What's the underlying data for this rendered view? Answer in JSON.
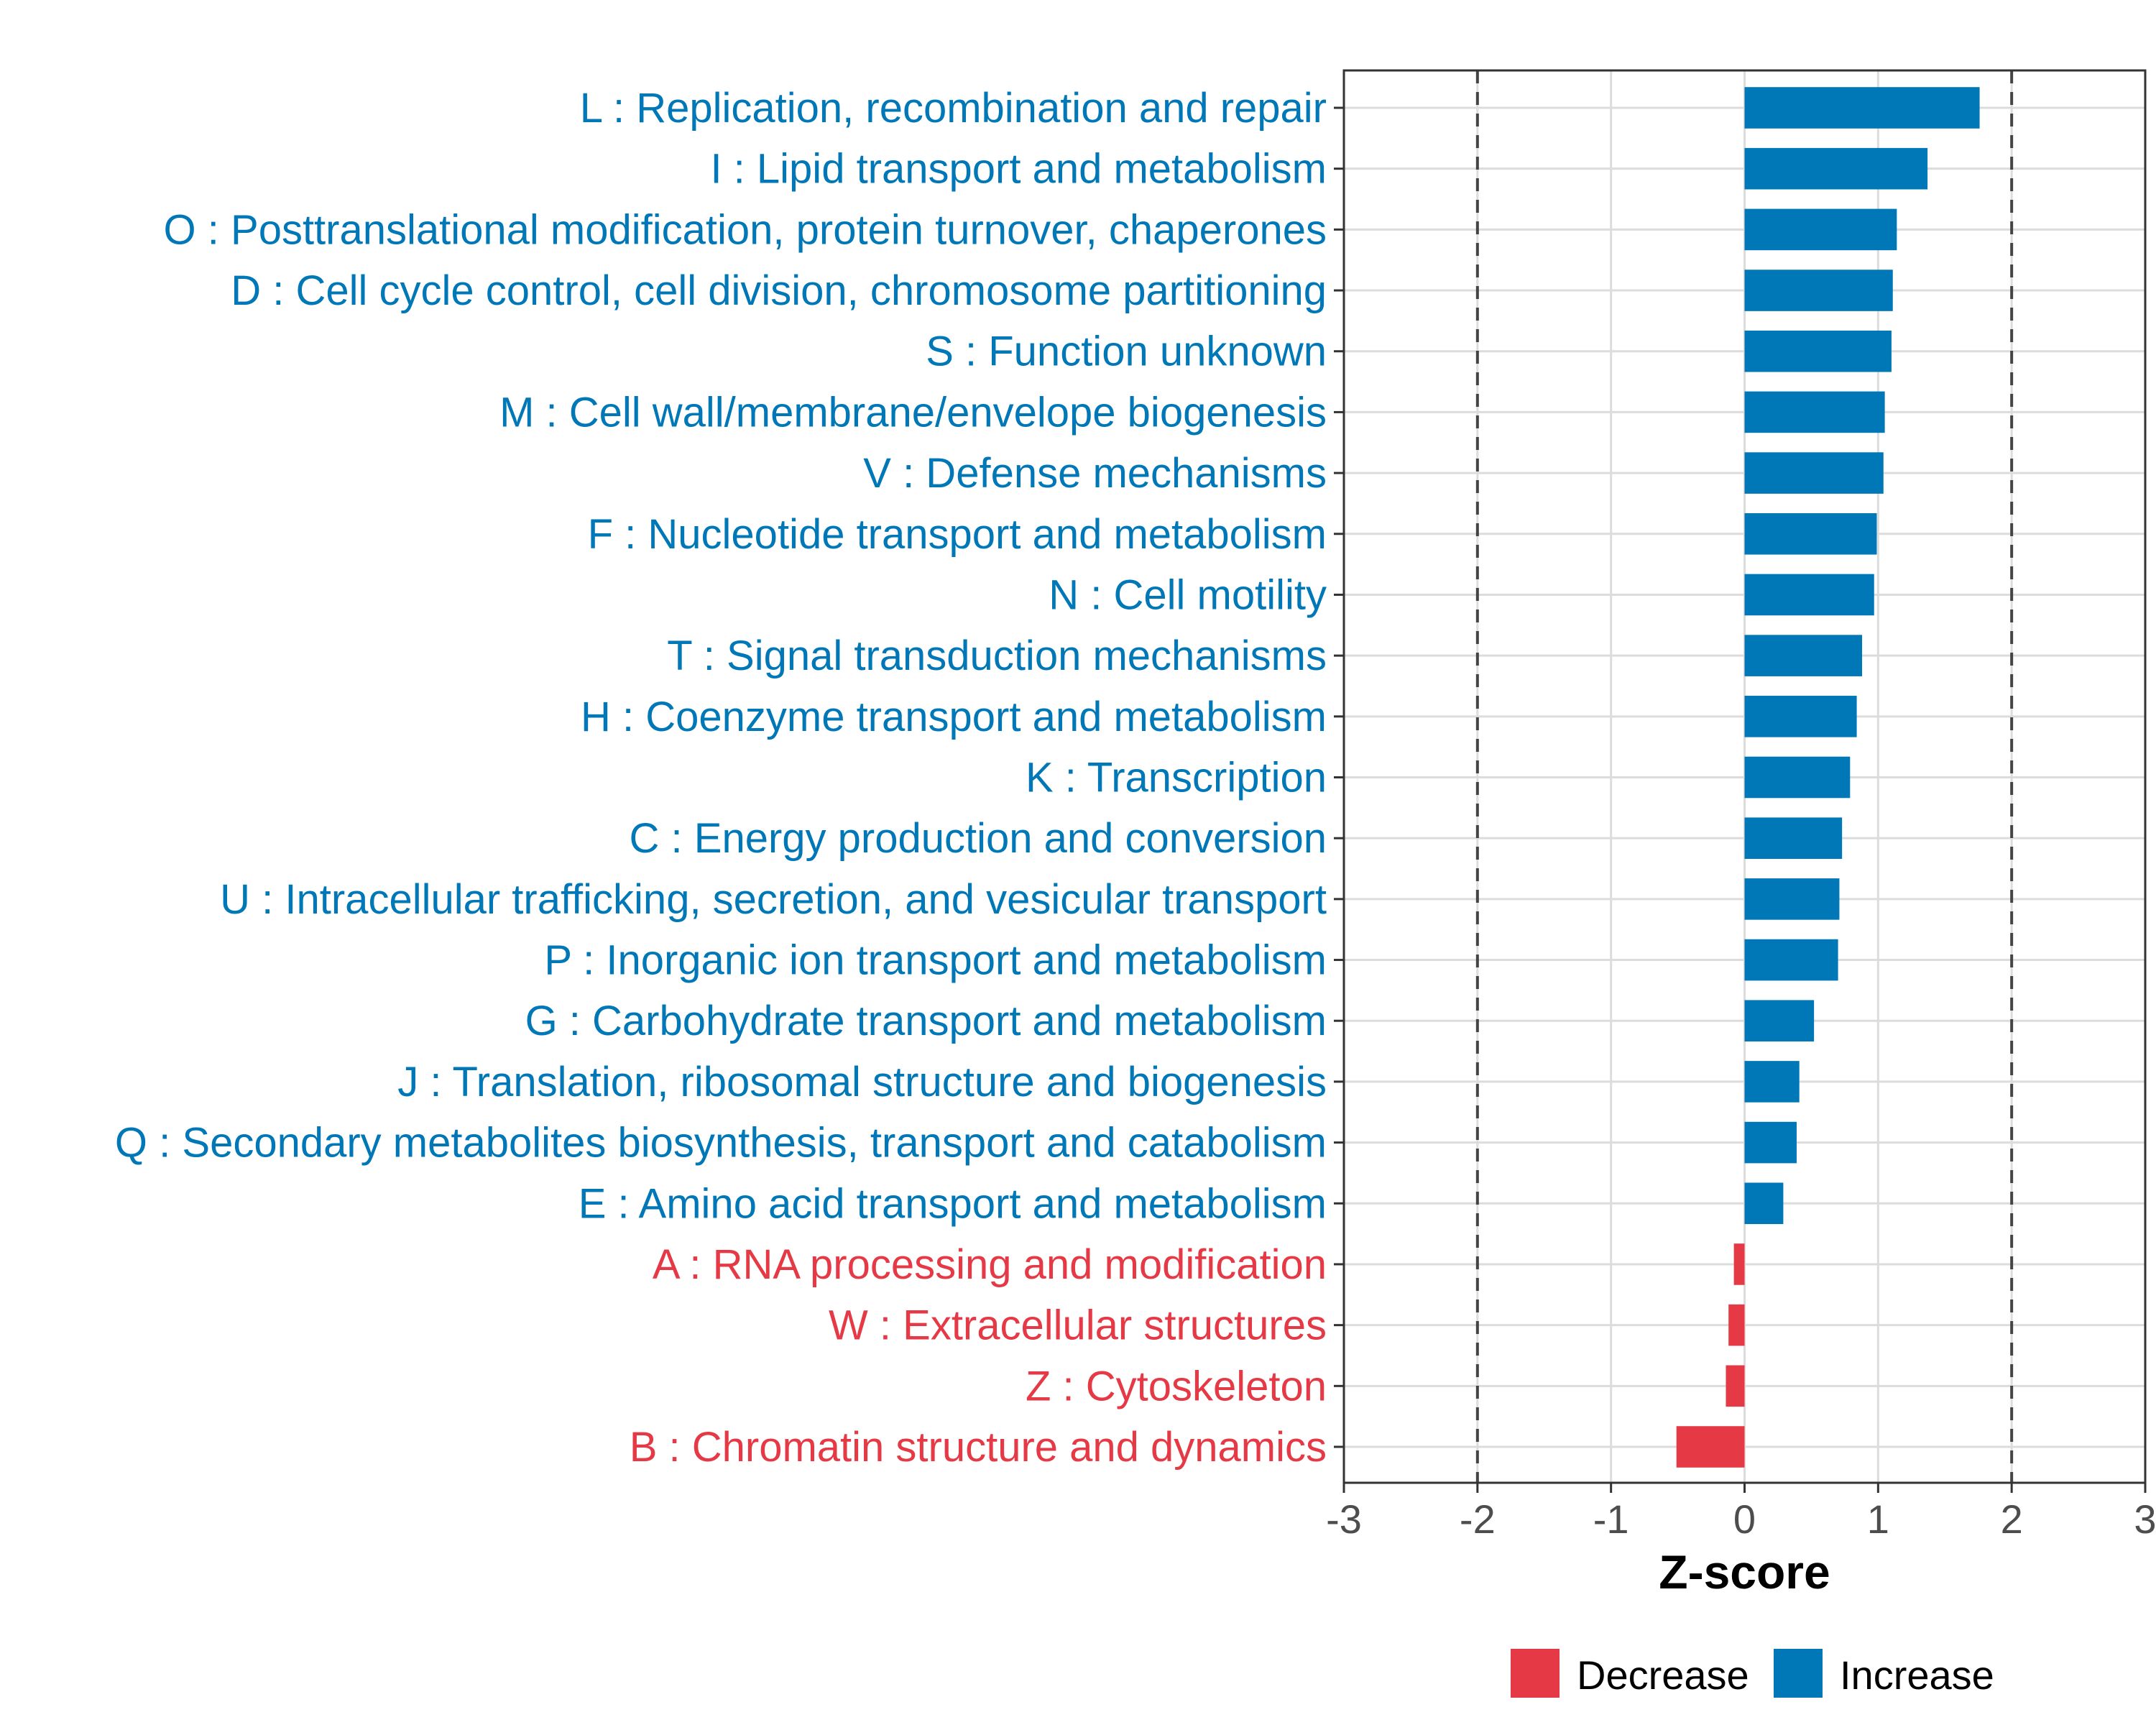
{
  "chart_data": {
    "type": "bar",
    "orientation": "horizontal",
    "xlabel": "Z-score",
    "xlim": [
      -3,
      3
    ],
    "xticks": [
      -3,
      -2,
      -1,
      0,
      1,
      2,
      3
    ],
    "threshold_lines": [
      -2,
      2
    ],
    "grid": true,
    "categories": [
      "L : Replication, recombination and repair",
      "I : Lipid transport and metabolism",
      "O : Posttranslational modification, protein turnover, chaperones",
      "D : Cell cycle control, cell division, chromosome partitioning",
      "S : Function unknown",
      "M : Cell wall/membrane/envelope biogenesis",
      "V : Defense mechanisms",
      "F : Nucleotide transport and metabolism",
      "N : Cell motility",
      "T : Signal transduction mechanisms",
      "H : Coenzyme transport and metabolism",
      "K : Transcription",
      "C : Energy production and conversion",
      "U : Intracellular trafficking, secretion, and vesicular transport",
      "P : Inorganic ion transport and metabolism",
      "G : Carbohydrate transport and metabolism",
      "J : Translation, ribosomal structure and biogenesis",
      "Q : Secondary metabolites biosynthesis, transport and catabolism",
      "E : Amino acid transport and metabolism",
      "A : RNA processing and modification",
      "W : Extracellular structures",
      "Z : Cytoskeleton",
      "B : Chromatin structure and dynamics"
    ],
    "values": [
      1.76,
      1.37,
      1.14,
      1.11,
      1.1,
      1.05,
      1.04,
      0.99,
      0.97,
      0.88,
      0.84,
      0.79,
      0.73,
      0.71,
      0.7,
      0.52,
      0.41,
      0.39,
      0.29,
      -0.08,
      -0.12,
      -0.14,
      -0.51
    ],
    "groups": [
      "Increase",
      "Increase",
      "Increase",
      "Increase",
      "Increase",
      "Increase",
      "Increase",
      "Increase",
      "Increase",
      "Increase",
      "Increase",
      "Increase",
      "Increase",
      "Increase",
      "Increase",
      "Increase",
      "Increase",
      "Increase",
      "Increase",
      "Decrease",
      "Decrease",
      "Decrease",
      "Decrease"
    ],
    "legend": {
      "position": "bottom",
      "entries": [
        {
          "label": "Decrease",
          "color": "#E63946"
        },
        {
          "label": "Increase",
          "color": "#0077B6"
        }
      ]
    },
    "colors": {
      "Decrease": "#E63946",
      "Increase": "#0077B6"
    }
  }
}
